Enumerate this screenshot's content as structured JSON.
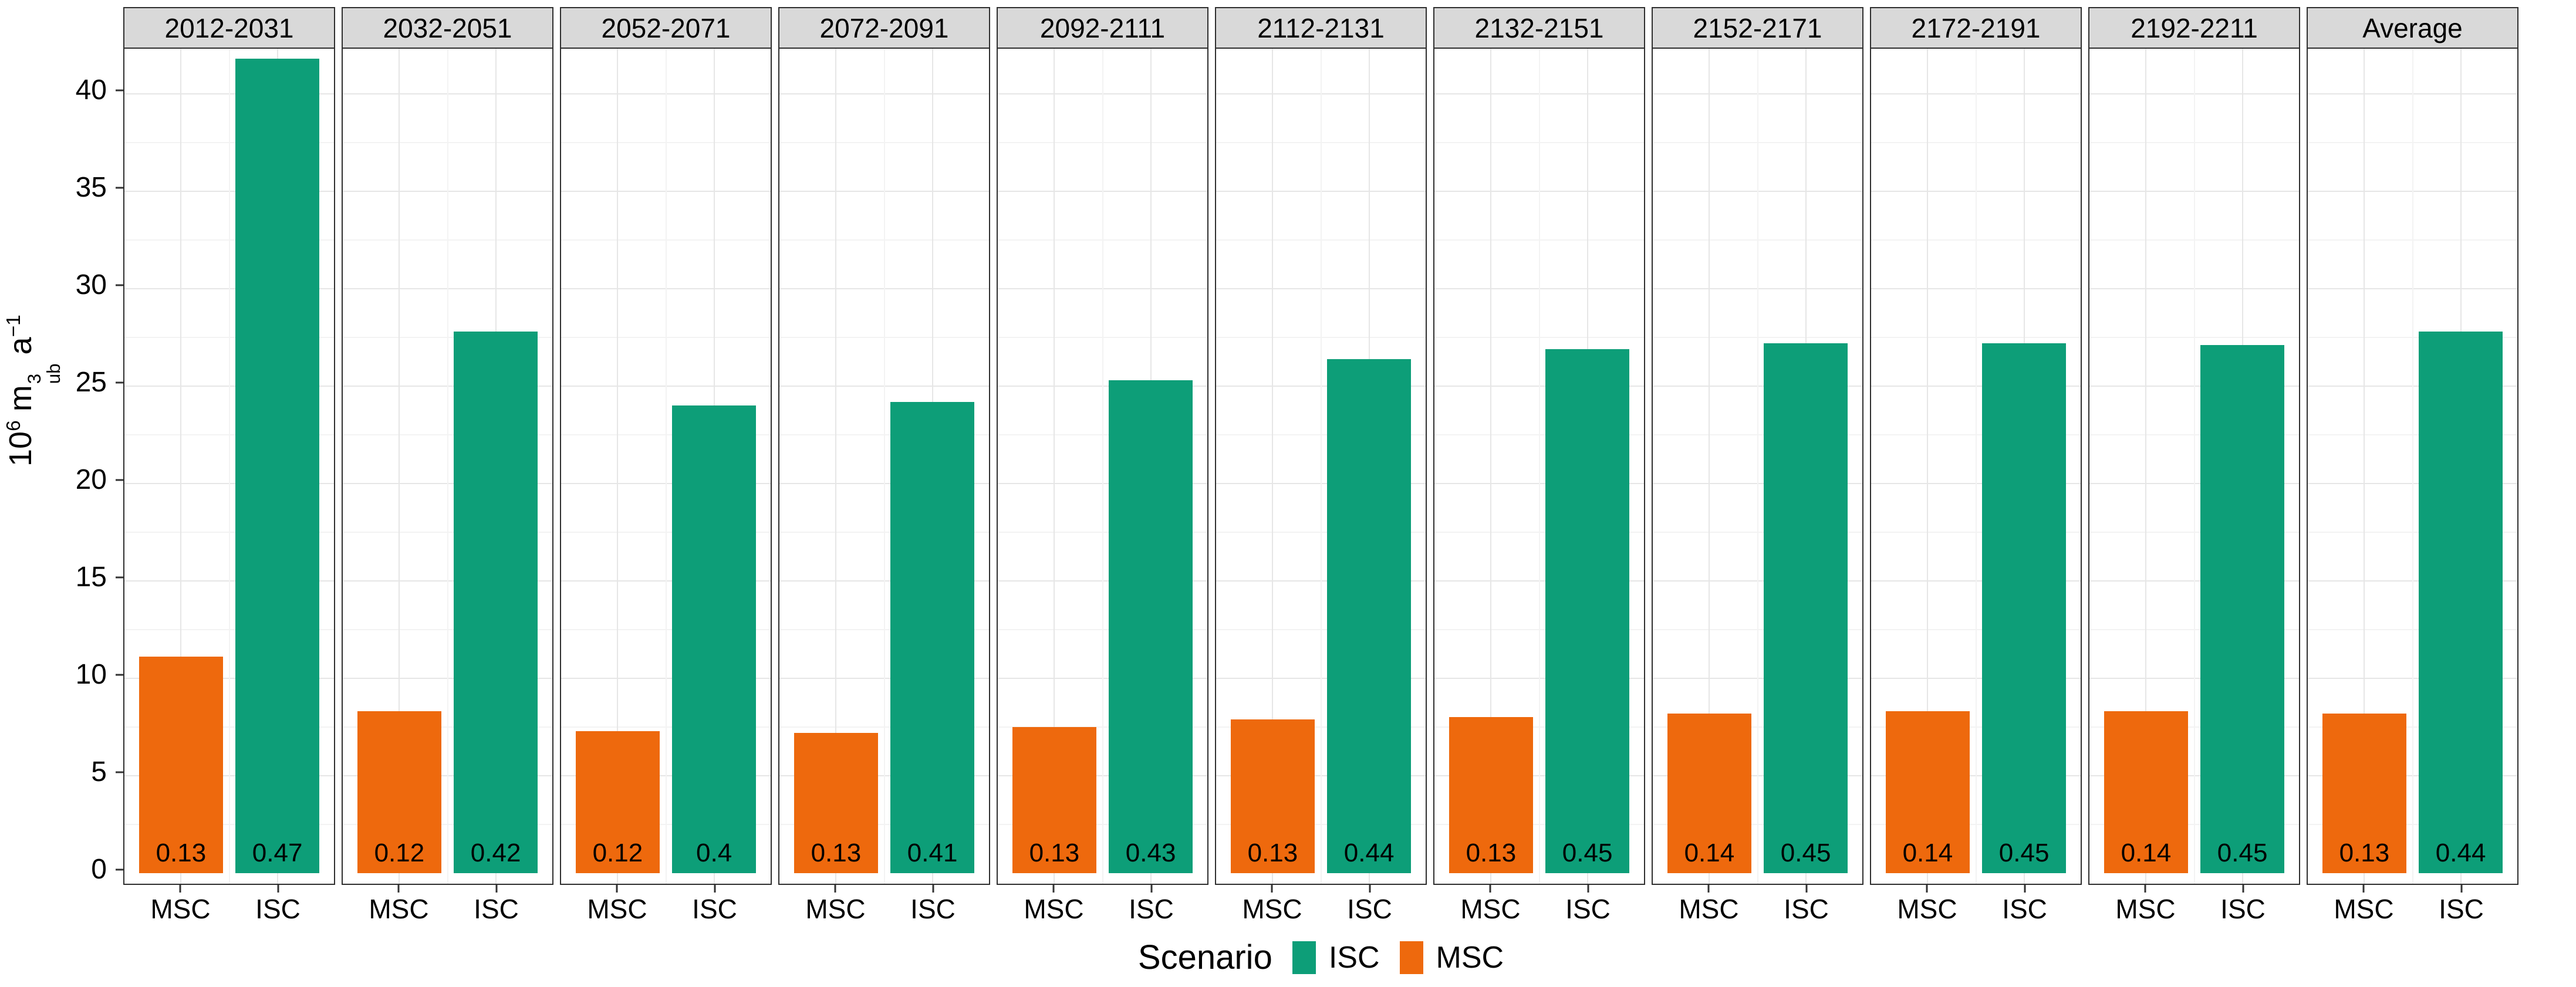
{
  "chart_data": {
    "type": "bar",
    "title": "",
    "facet_titles": [
      "2012-2031",
      "2032-2051",
      "2052-2071",
      "2072-2091",
      "2092-2111",
      "2112-2131",
      "2132-2151",
      "2152-2171",
      "2172-2191",
      "2192-2211",
      "Average"
    ],
    "categories": [
      "MSC",
      "ISC"
    ],
    "series": [
      {
        "name": "MSC",
        "color": "#ee690d",
        "values": [
          11.1,
          8.3,
          7.3,
          7.2,
          7.5,
          7.9,
          8.0,
          8.2,
          8.3,
          8.3,
          8.2
        ],
        "bar_labels": [
          "0.13",
          "0.12",
          "0.12",
          "0.13",
          "0.13",
          "0.13",
          "0.13",
          "0.14",
          "0.14",
          "0.14",
          "0.13"
        ]
      },
      {
        "name": "ISC",
        "color": "#0d9e78",
        "values": [
          41.8,
          27.8,
          24.0,
          24.2,
          25.3,
          26.4,
          26.9,
          27.2,
          27.2,
          27.1,
          27.8
        ],
        "bar_labels": [
          "0.47",
          "0.42",
          "0.4",
          "0.41",
          "0.43",
          "0.44",
          "0.45",
          "0.45",
          "0.45",
          "0.45",
          "0.44"
        ]
      }
    ],
    "ylabel": "10^6 m^3_ub a^-1",
    "ylabel_parts": {
      "base": "10",
      "base_exp": "6",
      "mid": "m",
      "mid_exp": "3",
      "mid_sub": "ub",
      "tail": "a",
      "tail_exp": "−1"
    },
    "yticks": [
      0,
      5,
      10,
      15,
      20,
      25,
      30,
      35,
      40
    ],
    "ylim": [
      0,
      42.4
    ],
    "grid": {
      "major_step": 5,
      "minor_step": 2.5,
      "shown": true
    },
    "legend": {
      "title": "Scenario",
      "position": "bottom",
      "entries": [
        {
          "label": "ISC",
          "color": "#0d9e78"
        },
        {
          "label": "MSC",
          "color": "#ee690d"
        }
      ]
    },
    "colors": {
      "strip_bg": "#d9d9d9",
      "panel_border": "#2f2f2f",
      "grid_major": "#e6e6e6",
      "grid_minor": "#f3f3f3"
    }
  }
}
